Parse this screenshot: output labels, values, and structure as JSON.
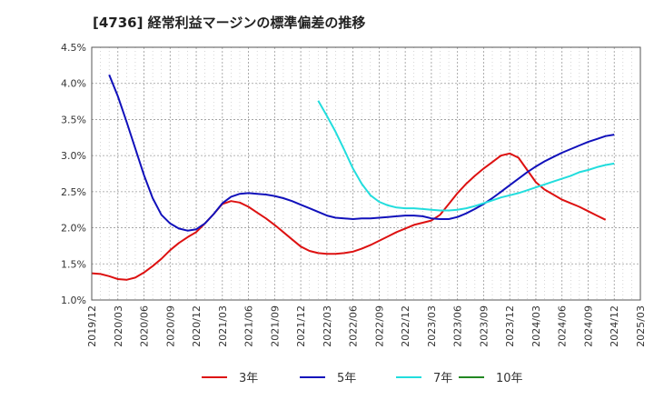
{
  "chart_data": {
    "type": "line",
    "title": "[4736]  経常利益マージンの標準偏差の推移",
    "xlabel": "",
    "ylabel": "",
    "y_range": [
      1.0,
      4.5
    ],
    "y_unit": "%",
    "y_ticks": [
      "1.0%",
      "1.5%",
      "2.0%",
      "2.5%",
      "3.0%",
      "3.5%",
      "4.0%",
      "4.5%"
    ],
    "x_ticks": [
      "2019/12",
      "2020/03",
      "2020/06",
      "2020/09",
      "2020/12",
      "2021/03",
      "2021/06",
      "2021/09",
      "2021/12",
      "2022/03",
      "2022/06",
      "2022/09",
      "2022/12",
      "2023/03",
      "2023/06",
      "2023/09",
      "2023/12",
      "2024/03",
      "2024/06",
      "2024/09",
      "2024/12",
      "2025/03"
    ],
    "grid": true,
    "legend_position": "bottom",
    "series": [
      {
        "name": "3年",
        "color": "#dd1111",
        "points": [
          [
            "2019/12",
            1.37
          ],
          [
            "2020/01",
            1.36
          ],
          [
            "2020/02",
            1.33
          ],
          [
            "2020/03",
            1.29
          ],
          [
            "2020/04",
            1.28
          ],
          [
            "2020/05",
            1.31
          ],
          [
            "2020/06",
            1.38
          ],
          [
            "2020/07",
            1.47
          ],
          [
            "2020/08",
            1.57
          ],
          [
            "2020/09",
            1.69
          ],
          [
            "2020/10",
            1.79
          ],
          [
            "2020/11",
            1.87
          ],
          [
            "2020/12",
            1.94
          ],
          [
            "2021/01",
            2.06
          ],
          [
            "2021/02",
            2.19
          ],
          [
            "2021/03",
            2.33
          ],
          [
            "2021/04",
            2.37
          ],
          [
            "2021/05",
            2.35
          ],
          [
            "2021/06",
            2.29
          ],
          [
            "2021/07",
            2.21
          ],
          [
            "2021/08",
            2.13
          ],
          [
            "2021/09",
            2.04
          ],
          [
            "2021/10",
            1.94
          ],
          [
            "2021/11",
            1.84
          ],
          [
            "2021/12",
            1.74
          ],
          [
            "2022/01",
            1.68
          ],
          [
            "2022/02",
            1.65
          ],
          [
            "2022/03",
            1.64
          ],
          [
            "2022/04",
            1.64
          ],
          [
            "2022/05",
            1.65
          ],
          [
            "2022/06",
            1.67
          ],
          [
            "2022/07",
            1.71
          ],
          [
            "2022/08",
            1.76
          ],
          [
            "2022/09",
            1.82
          ],
          [
            "2022/10",
            1.88
          ],
          [
            "2022/11",
            1.94
          ],
          [
            "2022/12",
            1.99
          ],
          [
            "2023/01",
            2.04
          ],
          [
            "2023/02",
            2.07
          ],
          [
            "2023/03",
            2.1
          ],
          [
            "2023/04",
            2.18
          ],
          [
            "2023/05",
            2.33
          ],
          [
            "2023/06",
            2.48
          ],
          [
            "2023/07",
            2.61
          ],
          [
            "2023/08",
            2.72
          ],
          [
            "2023/09",
            2.82
          ],
          [
            "2023/10",
            2.91
          ],
          [
            "2023/11",
            3.0
          ],
          [
            "2023/12",
            3.03
          ],
          [
            "2024/01",
            2.97
          ],
          [
            "2024/02",
            2.8
          ],
          [
            "2024/03",
            2.63
          ],
          [
            "2024/04",
            2.53
          ],
          [
            "2024/05",
            2.46
          ],
          [
            "2024/06",
            2.39
          ],
          [
            "2024/07",
            2.34
          ],
          [
            "2024/08",
            2.29
          ],
          [
            "2024/09",
            2.23
          ],
          [
            "2024/10",
            2.17
          ],
          [
            "2024/11",
            2.11
          ]
        ]
      },
      {
        "name": "5年",
        "color": "#1111bb",
        "points": [
          [
            "2020/02",
            4.12
          ],
          [
            "2020/03",
            3.82
          ],
          [
            "2020/04",
            3.47
          ],
          [
            "2020/05",
            3.1
          ],
          [
            "2020/06",
            2.73
          ],
          [
            "2020/07",
            2.41
          ],
          [
            "2020/08",
            2.18
          ],
          [
            "2020/09",
            2.06
          ],
          [
            "2020/10",
            1.99
          ],
          [
            "2020/11",
            1.96
          ],
          [
            "2020/12",
            1.98
          ],
          [
            "2021/01",
            2.06
          ],
          [
            "2021/02",
            2.19
          ],
          [
            "2021/03",
            2.34
          ],
          [
            "2021/04",
            2.43
          ],
          [
            "2021/05",
            2.47
          ],
          [
            "2021/06",
            2.48
          ],
          [
            "2021/07",
            2.47
          ],
          [
            "2021/08",
            2.46
          ],
          [
            "2021/09",
            2.44
          ],
          [
            "2021/10",
            2.41
          ],
          [
            "2021/11",
            2.37
          ],
          [
            "2021/12",
            2.32
          ],
          [
            "2022/01",
            2.27
          ],
          [
            "2022/02",
            2.22
          ],
          [
            "2022/03",
            2.17
          ],
          [
            "2022/04",
            2.14
          ],
          [
            "2022/05",
            2.13
          ],
          [
            "2022/06",
            2.12
          ],
          [
            "2022/07",
            2.13
          ],
          [
            "2022/08",
            2.13
          ],
          [
            "2022/09",
            2.14
          ],
          [
            "2022/10",
            2.15
          ],
          [
            "2022/11",
            2.16
          ],
          [
            "2022/12",
            2.17
          ],
          [
            "2023/01",
            2.17
          ],
          [
            "2023/02",
            2.16
          ],
          [
            "2023/03",
            2.13
          ],
          [
            "2023/04",
            2.12
          ],
          [
            "2023/05",
            2.12
          ],
          [
            "2023/06",
            2.15
          ],
          [
            "2023/07",
            2.2
          ],
          [
            "2023/08",
            2.26
          ],
          [
            "2023/09",
            2.33
          ],
          [
            "2023/10",
            2.41
          ],
          [
            "2023/11",
            2.5
          ],
          [
            "2023/12",
            2.59
          ],
          [
            "2024/01",
            2.68
          ],
          [
            "2024/02",
            2.77
          ],
          [
            "2024/03",
            2.85
          ],
          [
            "2024/04",
            2.92
          ],
          [
            "2024/05",
            2.98
          ],
          [
            "2024/06",
            3.04
          ],
          [
            "2024/07",
            3.09
          ],
          [
            "2024/08",
            3.14
          ],
          [
            "2024/09",
            3.19
          ],
          [
            "2024/10",
            3.23
          ],
          [
            "2024/11",
            3.27
          ],
          [
            "2024/12",
            3.29
          ]
        ]
      },
      {
        "name": "7年",
        "color": "#22dddd",
        "points": [
          [
            "2022/02",
            3.76
          ],
          [
            "2022/03",
            3.55
          ],
          [
            "2022/04",
            3.33
          ],
          [
            "2022/05",
            3.08
          ],
          [
            "2022/06",
            2.82
          ],
          [
            "2022/07",
            2.61
          ],
          [
            "2022/08",
            2.45
          ],
          [
            "2022/09",
            2.36
          ],
          [
            "2022/10",
            2.31
          ],
          [
            "2022/11",
            2.28
          ],
          [
            "2022/12",
            2.27
          ],
          [
            "2023/01",
            2.27
          ],
          [
            "2023/02",
            2.26
          ],
          [
            "2023/03",
            2.25
          ],
          [
            "2023/04",
            2.24
          ],
          [
            "2023/05",
            2.24
          ],
          [
            "2023/06",
            2.25
          ],
          [
            "2023/07",
            2.27
          ],
          [
            "2023/08",
            2.3
          ],
          [
            "2023/09",
            2.34
          ],
          [
            "2023/10",
            2.38
          ],
          [
            "2023/11",
            2.42
          ],
          [
            "2023/12",
            2.45
          ],
          [
            "2024/01",
            2.48
          ],
          [
            "2024/02",
            2.52
          ],
          [
            "2024/03",
            2.56
          ],
          [
            "2024/04",
            2.6
          ],
          [
            "2024/05",
            2.64
          ],
          [
            "2024/06",
            2.68
          ],
          [
            "2024/07",
            2.72
          ],
          [
            "2024/08",
            2.77
          ],
          [
            "2024/09",
            2.8
          ],
          [
            "2024/10",
            2.84
          ],
          [
            "2024/11",
            2.87
          ],
          [
            "2024/12",
            2.89
          ]
        ]
      },
      {
        "name": "10年",
        "color": "#228822",
        "points": []
      }
    ]
  }
}
